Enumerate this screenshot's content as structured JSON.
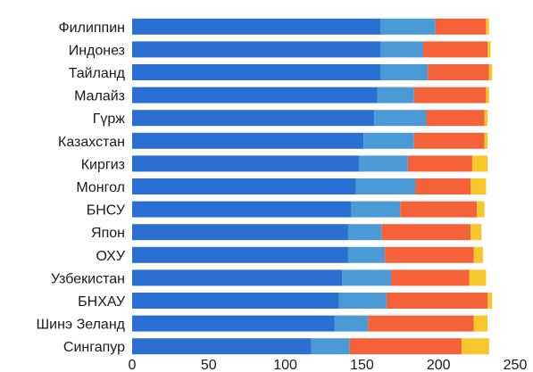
{
  "chart_data": {
    "type": "bar",
    "orientation": "horizontal",
    "stacked": true,
    "title": "",
    "xlabel": "",
    "ylabel": "",
    "xlim": [
      0,
      250
    ],
    "xticks": [
      0,
      50,
      100,
      150,
      200,
      250
    ],
    "grid": false,
    "categories": [
      "Филиппин",
      "Индонез",
      "Тайланд",
      "Малайз",
      "Гүрж",
      "Казахстан",
      "Киргиз",
      "Монгол",
      "БНСУ",
      "Япон",
      "ОХУ",
      "Узбекистан",
      "БНХАУ",
      "Шинэ Зеланд",
      "Сингапур"
    ],
    "series": [
      {
        "color": "#2a6fd1",
        "values": [
          162,
          162,
          162,
          160,
          158,
          151,
          148,
          146,
          143,
          141,
          141,
          137,
          135,
          132,
          117
        ]
      },
      {
        "color": "#4b9ad6",
        "values": [
          36,
          28,
          31,
          24,
          34,
          33,
          32,
          39,
          32,
          22,
          24,
          32,
          31,
          22,
          25
        ]
      },
      {
        "color": "#f5623a",
        "values": [
          33,
          42,
          40,
          47,
          38,
          46,
          42,
          36,
          50,
          58,
          58,
          51,
          66,
          69,
          73
        ]
      },
      {
        "color": "#f7c62a",
        "values": [
          2,
          2,
          2,
          2,
          2,
          2,
          10,
          10,
          5,
          7,
          6,
          11,
          3,
          9,
          18
        ]
      }
    ]
  }
}
